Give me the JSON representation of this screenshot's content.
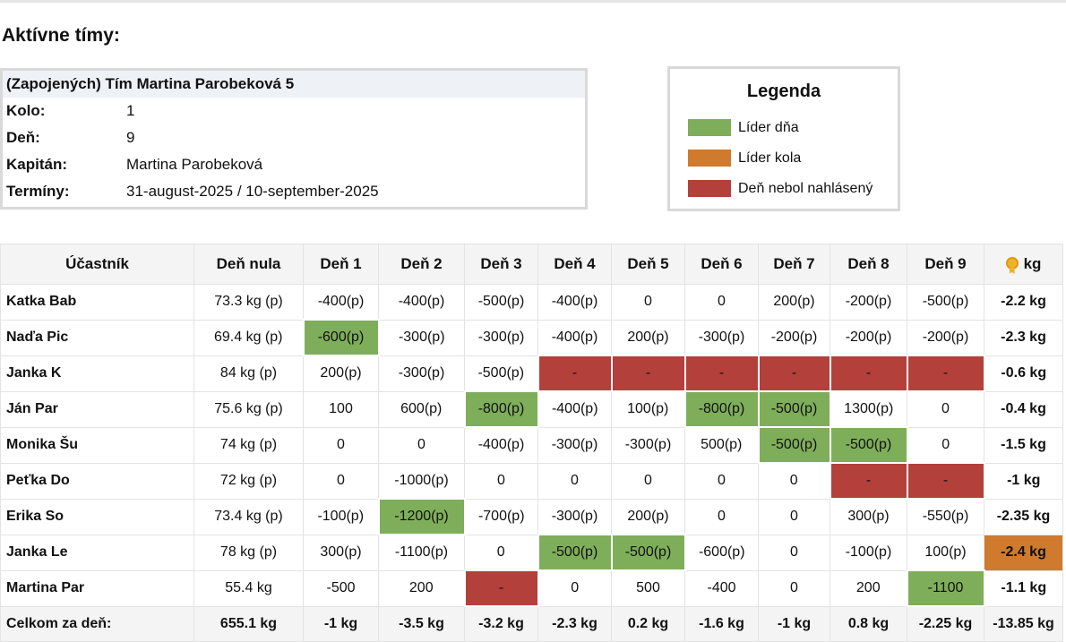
{
  "heading": "Aktívne tímy:",
  "team": {
    "title": "(Zapojených) Tím Martina Parobeková 5",
    "rows": [
      {
        "label": "Kolo:",
        "value": "1"
      },
      {
        "label": "Deň:",
        "value": "9"
      },
      {
        "label": "Kapitán:",
        "value": "Martina Parobeková"
      },
      {
        "label": "Termíny:",
        "value": "31-august-2025 / 10-september-2025"
      }
    ]
  },
  "legend": {
    "title": "Legenda",
    "items": [
      {
        "label": "Líder dňa",
        "color": "#7fae5a"
      },
      {
        "label": "Líder kola",
        "color": "#cf7a2c"
      },
      {
        "label": "Deň nebol nahlásený",
        "color": "#b3403b"
      }
    ]
  },
  "colors": {
    "green": "#7fae5a",
    "orange": "#cf7a2c",
    "red": "#b3403b"
  },
  "table": {
    "headers": [
      "Účastník",
      "Deň nula",
      "Deň 1",
      "Deň 2",
      "Deň 3",
      "Deň 4",
      "Deň 5",
      "Deň 6",
      "Deň 7",
      "Deň 8",
      "Deň 9",
      "kg"
    ],
    "total_header_icon": "medal-icon",
    "rows": [
      {
        "name": "Katka Bab",
        "zero": "73.3 kg (p)",
        "days": [
          {
            "v": "-400(p)",
            "c": ""
          },
          {
            "v": "-400(p)",
            "c": ""
          },
          {
            "v": "-500(p)",
            "c": ""
          },
          {
            "v": "-400(p)",
            "c": ""
          },
          {
            "v": "0",
            "c": ""
          },
          {
            "v": "0",
            "c": ""
          },
          {
            "v": "200(p)",
            "c": ""
          },
          {
            "v": "-200(p)",
            "c": ""
          },
          {
            "v": "-500(p)",
            "c": ""
          }
        ],
        "total": {
          "v": "-2.2 kg",
          "c": ""
        }
      },
      {
        "name": "Naďa Pic",
        "zero": "69.4 kg (p)",
        "days": [
          {
            "v": "-600(p)",
            "c": "green"
          },
          {
            "v": "-300(p)",
            "c": ""
          },
          {
            "v": "-300(p)",
            "c": ""
          },
          {
            "v": "-400(p)",
            "c": ""
          },
          {
            "v": "200(p)",
            "c": ""
          },
          {
            "v": "-300(p)",
            "c": ""
          },
          {
            "v": "-200(p)",
            "c": ""
          },
          {
            "v": "-200(p)",
            "c": ""
          },
          {
            "v": "-200(p)",
            "c": ""
          }
        ],
        "total": {
          "v": "-2.3 kg",
          "c": ""
        }
      },
      {
        "name": "Janka K",
        "zero": "84 kg (p)",
        "days": [
          {
            "v": "200(p)",
            "c": ""
          },
          {
            "v": "-300(p)",
            "c": ""
          },
          {
            "v": "-500(p)",
            "c": ""
          },
          {
            "v": "-",
            "c": "red"
          },
          {
            "v": "-",
            "c": "red"
          },
          {
            "v": "-",
            "c": "red"
          },
          {
            "v": "-",
            "c": "red"
          },
          {
            "v": "-",
            "c": "red"
          },
          {
            "v": "-",
            "c": "red"
          }
        ],
        "total": {
          "v": "-0.6 kg",
          "c": ""
        }
      },
      {
        "name": "Ján Par",
        "zero": "75.6 kg (p)",
        "days": [
          {
            "v": "100",
            "c": ""
          },
          {
            "v": "600(p)",
            "c": ""
          },
          {
            "v": "-800(p)",
            "c": "green"
          },
          {
            "v": "-400(p)",
            "c": ""
          },
          {
            "v": "100(p)",
            "c": ""
          },
          {
            "v": "-800(p)",
            "c": "green"
          },
          {
            "v": "-500(p)",
            "c": "green"
          },
          {
            "v": "1300(p)",
            "c": ""
          },
          {
            "v": "0",
            "c": ""
          }
        ],
        "total": {
          "v": "-0.4 kg",
          "c": ""
        }
      },
      {
        "name": "Monika Šu",
        "zero": "74 kg (p)",
        "days": [
          {
            "v": "0",
            "c": ""
          },
          {
            "v": "0",
            "c": ""
          },
          {
            "v": "-400(p)",
            "c": ""
          },
          {
            "v": "-300(p)",
            "c": ""
          },
          {
            "v": "-300(p)",
            "c": ""
          },
          {
            "v": "500(p)",
            "c": ""
          },
          {
            "v": "-500(p)",
            "c": "green"
          },
          {
            "v": "-500(p)",
            "c": "green"
          },
          {
            "v": "0",
            "c": ""
          }
        ],
        "total": {
          "v": "-1.5 kg",
          "c": ""
        }
      },
      {
        "name": "Peťka Do",
        "zero": "72 kg (p)",
        "days": [
          {
            "v": "0",
            "c": ""
          },
          {
            "v": "-1000(p)",
            "c": ""
          },
          {
            "v": "0",
            "c": ""
          },
          {
            "v": "0",
            "c": ""
          },
          {
            "v": "0",
            "c": ""
          },
          {
            "v": "0",
            "c": ""
          },
          {
            "v": "0",
            "c": ""
          },
          {
            "v": "-",
            "c": "red"
          },
          {
            "v": "-",
            "c": "red"
          }
        ],
        "total": {
          "v": "-1 kg",
          "c": ""
        }
      },
      {
        "name": "Erika So",
        "zero": "73.4 kg (p)",
        "days": [
          {
            "v": "-100(p)",
            "c": ""
          },
          {
            "v": "-1200(p)",
            "c": "green"
          },
          {
            "v": "-700(p)",
            "c": ""
          },
          {
            "v": "-300(p)",
            "c": ""
          },
          {
            "v": "200(p)",
            "c": ""
          },
          {
            "v": "0",
            "c": ""
          },
          {
            "v": "0",
            "c": ""
          },
          {
            "v": "300(p)",
            "c": ""
          },
          {
            "v": "-550(p)",
            "c": ""
          }
        ],
        "total": {
          "v": "-2.35 kg",
          "c": ""
        }
      },
      {
        "name": "Janka Le",
        "zero": "78 kg (p)",
        "days": [
          {
            "v": "300(p)",
            "c": ""
          },
          {
            "v": "-1100(p)",
            "c": ""
          },
          {
            "v": "0",
            "c": ""
          },
          {
            "v": "-500(p)",
            "c": "green"
          },
          {
            "v": "-500(p)",
            "c": "green"
          },
          {
            "v": "-600(p)",
            "c": ""
          },
          {
            "v": "0",
            "c": ""
          },
          {
            "v": "-100(p)",
            "c": ""
          },
          {
            "v": "100(p)",
            "c": ""
          }
        ],
        "total": {
          "v": "-2.4 kg",
          "c": "orange"
        }
      },
      {
        "name": "Martina Par",
        "zero": "55.4 kg",
        "days": [
          {
            "v": "-500",
            "c": ""
          },
          {
            "v": "200",
            "c": ""
          },
          {
            "v": "-",
            "c": "red"
          },
          {
            "v": "0",
            "c": ""
          },
          {
            "v": "500",
            "c": ""
          },
          {
            "v": "-400",
            "c": ""
          },
          {
            "v": "0",
            "c": ""
          },
          {
            "v": "200",
            "c": ""
          },
          {
            "v": "-1100",
            "c": "green"
          }
        ],
        "total": {
          "v": "-1.1 kg",
          "c": ""
        }
      }
    ],
    "footer": {
      "label": "Celkom za deň:",
      "zero": "655.1 kg",
      "days": [
        "-1 kg",
        "-3.5 kg",
        "-3.2 kg",
        "-2.3 kg",
        "0.2 kg",
        "-1.6 kg",
        "-1 kg",
        "0.8 kg",
        "-2.25 kg"
      ],
      "total": "-13.85 kg"
    }
  }
}
